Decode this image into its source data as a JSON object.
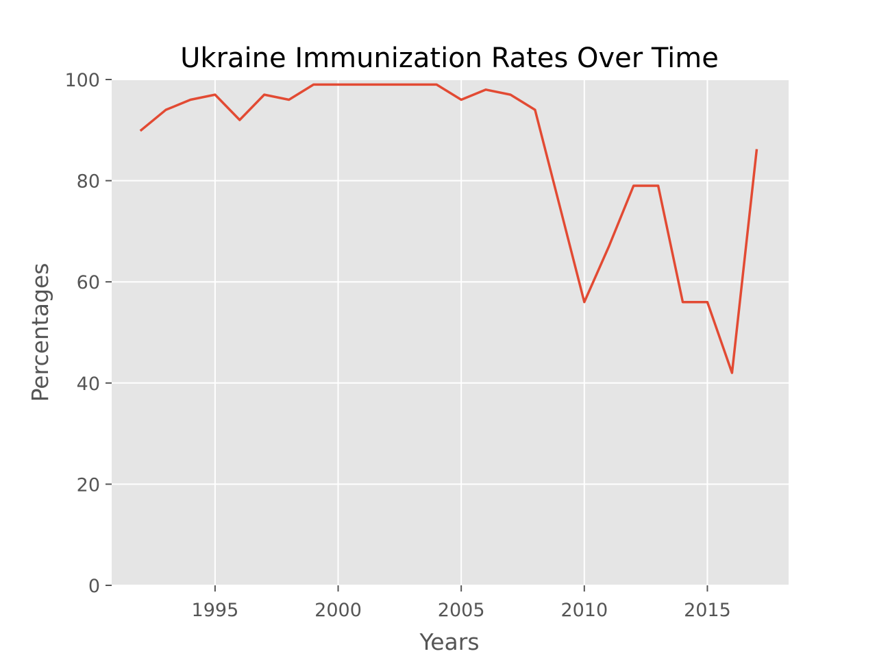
{
  "chart_data": {
    "type": "line",
    "title": "Ukraine Immunization Rates Over Time",
    "xlabel": "Years",
    "ylabel": "Percentages",
    "xlim": [
      1990.8,
      2018.3
    ],
    "ylim": [
      0,
      100
    ],
    "x_ticks": [
      1995,
      2000,
      2005,
      2010,
      2015
    ],
    "y_ticks": [
      0,
      20,
      40,
      60,
      80,
      100
    ],
    "grid": true,
    "legend": "none",
    "series": [
      {
        "color": "#E24A33",
        "x": [
          1992,
          1993,
          1994,
          1995,
          1996,
          1997,
          1998,
          1999,
          2000,
          2001,
          2002,
          2003,
          2004,
          2005,
          2006,
          2007,
          2008,
          2009,
          2010,
          2011,
          2012,
          2013,
          2014,
          2015,
          2016,
          2017
        ],
        "y": [
          90,
          94,
          96,
          97,
          92,
          97,
          96,
          99,
          99,
          99,
          99,
          99,
          99,
          96,
          98,
          97,
          94,
          75,
          56,
          67,
          79,
          79,
          56,
          56,
          42,
          86
        ]
      }
    ]
  },
  "colors": {
    "axes_background": "#E5E5E5",
    "grid": "#FFFFFF",
    "text": "#555555",
    "line": "#E24A33"
  }
}
